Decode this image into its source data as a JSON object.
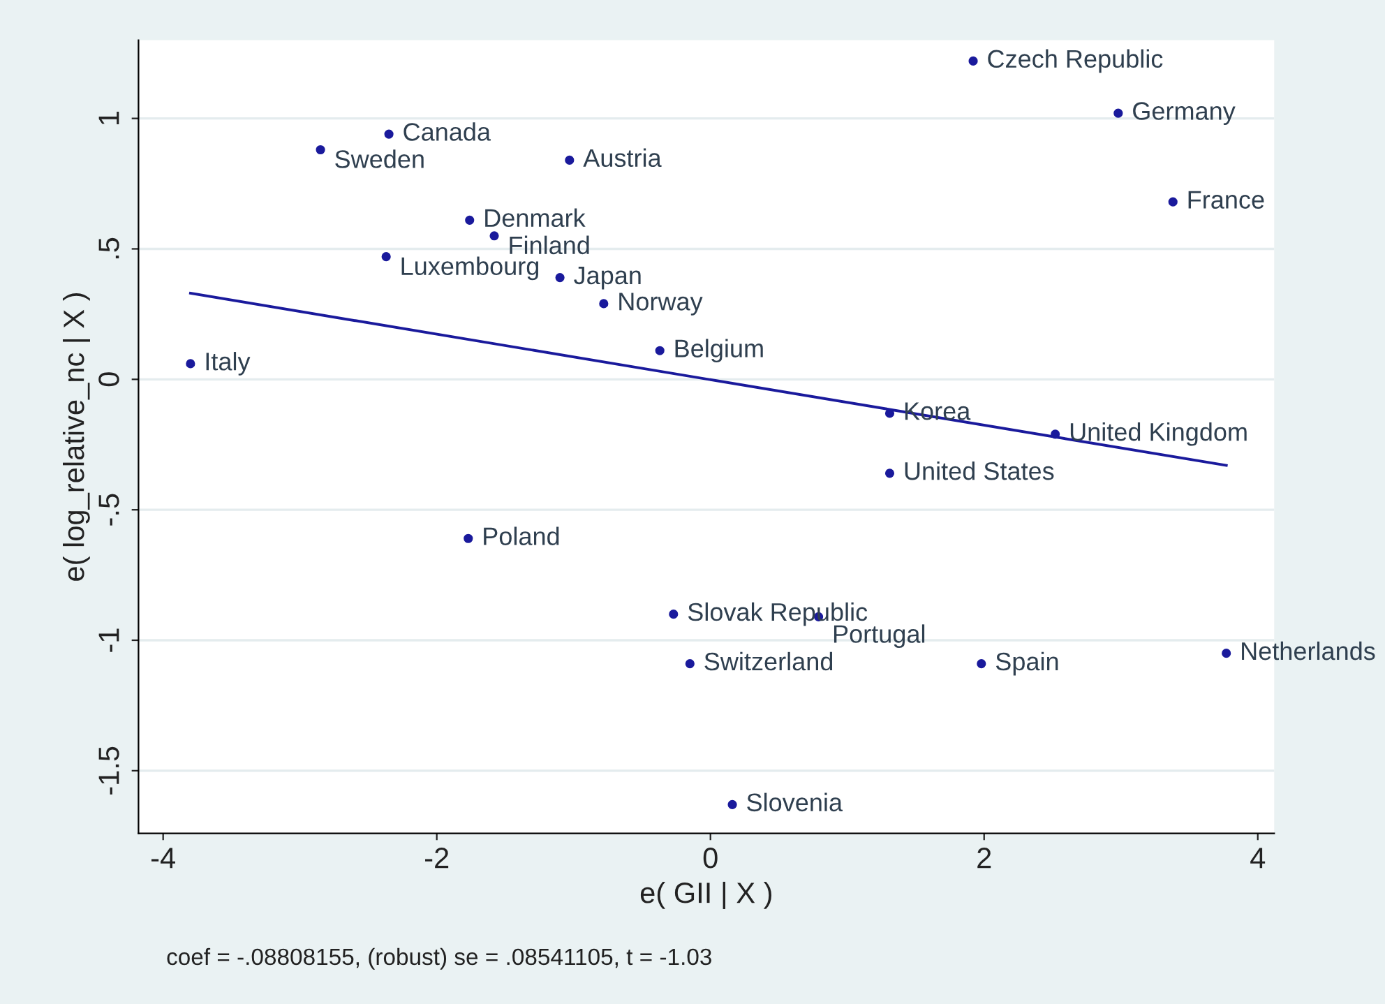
{
  "chart_data": {
    "type": "scatter",
    "xlabel": "e( GII | X )",
    "ylabel": "e( log_relative_nc | X )",
    "series": [
      {
        "marker": "circle",
        "color": "#1a1a9c",
        "x": [
          1.92,
          2.98,
          3.38,
          -2.35,
          -2.85,
          -1.03,
          -1.76,
          -1.58,
          -2.37,
          -1.1,
          -0.78,
          -0.37,
          -3.8,
          1.31,
          2.52,
          1.31,
          -1.77,
          -0.27,
          0.79,
          -0.15,
          1.98,
          3.77,
          0.16
        ],
        "values": [
          1.22,
          1.02,
          0.68,
          0.94,
          0.88,
          0.84,
          0.61,
          0.55,
          0.47,
          0.39,
          0.29,
          0.11,
          0.06,
          -0.13,
          -0.21,
          -0.36,
          -0.61,
          -0.9,
          -0.91,
          -1.09,
          -1.09,
          -1.05,
          -1.63
        ]
      },
      {
        "type": "line",
        "color": "#1a1a9c",
        "x": [
          -3.8,
          3.77
        ],
        "values": [
          0.33,
          -0.33
        ]
      }
    ],
    "annotations": [
      {
        "text": "Czech Republic",
        "x": 1.92,
        "y": 1.22
      },
      {
        "text": "Germany",
        "x": 2.98,
        "y": 1.02
      },
      {
        "text": "France",
        "x": 3.38,
        "y": 0.68
      },
      {
        "text": "Canada",
        "x": -2.35,
        "y": 0.94
      },
      {
        "text": "Sweden",
        "x": -2.85,
        "y": 0.88
      },
      {
        "text": "Austria",
        "x": -1.03,
        "y": 0.84
      },
      {
        "text": "Denmark",
        "x": -1.76,
        "y": 0.61
      },
      {
        "text": "Finland",
        "x": -1.58,
        "y": 0.55
      },
      {
        "text": "Luxembourg",
        "x": -2.37,
        "y": 0.47
      },
      {
        "text": "Japan",
        "x": -1.1,
        "y": 0.39
      },
      {
        "text": "Norway",
        "x": -0.78,
        "y": 0.29
      },
      {
        "text": "Belgium",
        "x": -0.37,
        "y": 0.11
      },
      {
        "text": "Italy",
        "x": -3.8,
        "y": 0.06
      },
      {
        "text": "Korea",
        "x": 1.31,
        "y": -0.13
      },
      {
        "text": "United Kingdom",
        "x": 2.52,
        "y": -0.21
      },
      {
        "text": "United States",
        "x": 1.31,
        "y": -0.36
      },
      {
        "text": "Poland",
        "x": -1.77,
        "y": -0.61
      },
      {
        "text": "Slovak Republic",
        "x": -0.27,
        "y": -0.9
      },
      {
        "text": "Portugal",
        "x": 0.79,
        "y": -0.91
      },
      {
        "text": "Switzerland",
        "x": -0.15,
        "y": -1.09
      },
      {
        "text": "Spain",
        "x": 1.98,
        "y": -1.09
      },
      {
        "text": "Netherlands",
        "x": 3.77,
        "y": -1.05
      },
      {
        "text": "Slovenia",
        "x": 0.16,
        "y": -1.63
      },
      "coef = -.08808155, (robust) se = .08541105, t = -1.03"
    ],
    "xlim": [
      -4.18,
      4.12
    ],
    "ylim": [
      -1.74,
      1.3
    ],
    "xticks": [
      -4,
      -2,
      0,
      2,
      4
    ],
    "yticks": [
      {
        "value": -1.5,
        "label": "-1.5"
      },
      {
        "value": -1,
        "label": "-1"
      },
      {
        "value": -0.5,
        "label": "-.5"
      },
      {
        "value": 0,
        "label": "0"
      },
      {
        "value": 0.5,
        "label": ".5"
      },
      {
        "value": 1,
        "label": "1"
      }
    ],
    "grid": "y",
    "legend": false
  }
}
